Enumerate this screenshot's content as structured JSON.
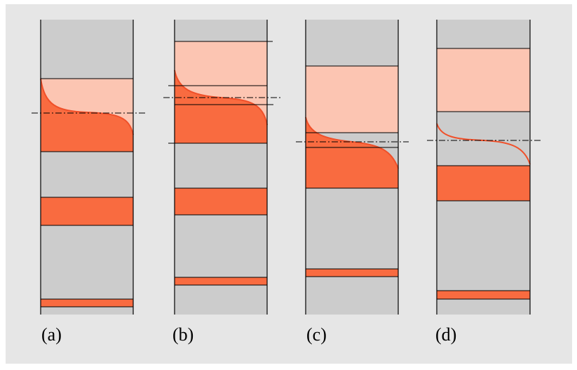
{
  "figure": {
    "background_color": "#e6e6e6",
    "colors": {
      "gray": "#cccccc",
      "dark_orange": "#f96b40",
      "light_orange": "#fcc5b2",
      "curve": "#f0502a",
      "outline": "#000000"
    },
    "panels": [
      {
        "id": "a",
        "label": "(a)"
      },
      {
        "id": "b",
        "label": "(b)"
      },
      {
        "id": "c",
        "label": "(c)"
      },
      {
        "id": "d",
        "label": "(d)"
      }
    ]
  }
}
